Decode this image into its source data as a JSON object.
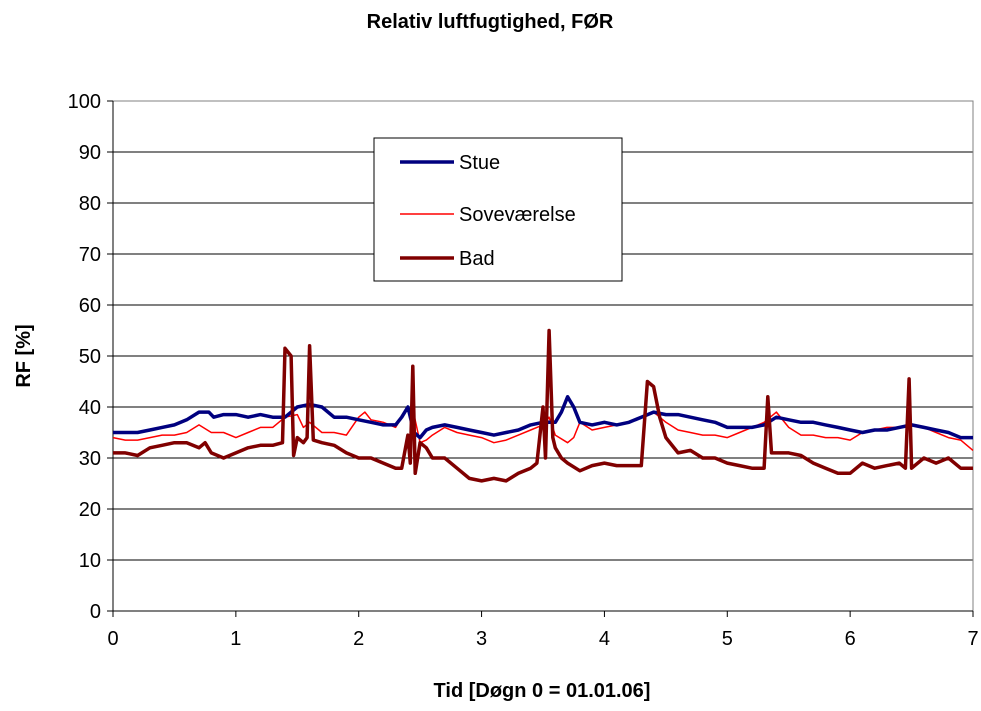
{
  "chart_data": {
    "type": "line",
    "title": "Relativ luftfugtighed, FØR",
    "xlabel": "Tid [Døgn 0 = 01.01.06]",
    "ylabel": "RF [%]",
    "xlim": [
      0,
      7
    ],
    "ylim": [
      0,
      100
    ],
    "x_ticks": [
      "0",
      "1",
      "2",
      "3",
      "4",
      "5",
      "6",
      "7"
    ],
    "y_ticks": [
      "0",
      "10",
      "20",
      "30",
      "40",
      "50",
      "60",
      "70",
      "80",
      "90",
      "100"
    ],
    "grid": "horizontal",
    "legend_position": "upper-center",
    "series": [
      {
        "name": "Stue",
        "color": "#00007f",
        "points": [
          [
            0,
            35
          ],
          [
            0.2,
            35
          ],
          [
            0.3,
            35.5
          ],
          [
            0.4,
            36
          ],
          [
            0.5,
            36.5
          ],
          [
            0.6,
            37.5
          ],
          [
            0.7,
            39
          ],
          [
            0.78,
            39
          ],
          [
            0.82,
            38
          ],
          [
            0.9,
            38.5
          ],
          [
            1.0,
            38.5
          ],
          [
            1.1,
            38
          ],
          [
            1.2,
            38.5
          ],
          [
            1.3,
            38
          ],
          [
            1.4,
            38
          ],
          [
            1.5,
            40
          ],
          [
            1.6,
            40.5
          ],
          [
            1.7,
            40
          ],
          [
            1.8,
            38
          ],
          [
            1.9,
            38
          ],
          [
            2.0,
            37.5
          ],
          [
            2.1,
            37
          ],
          [
            2.2,
            36.5
          ],
          [
            2.3,
            36.5
          ],
          [
            2.35,
            38
          ],
          [
            2.4,
            40
          ],
          [
            2.45,
            35
          ],
          [
            2.5,
            34
          ],
          [
            2.55,
            35.5
          ],
          [
            2.6,
            36
          ],
          [
            2.7,
            36.5
          ],
          [
            2.8,
            36
          ],
          [
            2.9,
            35.5
          ],
          [
            3.0,
            35
          ],
          [
            3.1,
            34.5
          ],
          [
            3.2,
            35
          ],
          [
            3.3,
            35.5
          ],
          [
            3.4,
            36.5
          ],
          [
            3.5,
            37
          ],
          [
            3.6,
            37
          ],
          [
            3.65,
            39
          ],
          [
            3.7,
            42
          ],
          [
            3.75,
            40
          ],
          [
            3.8,
            37
          ],
          [
            3.9,
            36.5
          ],
          [
            4.0,
            37
          ],
          [
            4.1,
            36.5
          ],
          [
            4.2,
            37
          ],
          [
            4.3,
            38
          ],
          [
            4.4,
            39
          ],
          [
            4.5,
            38.5
          ],
          [
            4.6,
            38.5
          ],
          [
            4.7,
            38
          ],
          [
            4.8,
            37.5
          ],
          [
            4.9,
            37
          ],
          [
            5.0,
            36
          ],
          [
            5.1,
            36
          ],
          [
            5.2,
            36
          ],
          [
            5.3,
            36.5
          ],
          [
            5.4,
            38
          ],
          [
            5.5,
            37.5
          ],
          [
            5.6,
            37
          ],
          [
            5.7,
            37
          ],
          [
            5.8,
            36.5
          ],
          [
            5.9,
            36
          ],
          [
            6.0,
            35.5
          ],
          [
            6.1,
            35
          ],
          [
            6.2,
            35.5
          ],
          [
            6.3,
            35.5
          ],
          [
            6.4,
            36
          ],
          [
            6.5,
            36.5
          ],
          [
            6.6,
            36
          ],
          [
            6.7,
            35.5
          ],
          [
            6.8,
            35
          ],
          [
            6.9,
            34
          ],
          [
            7.0,
            34
          ]
        ]
      },
      {
        "name": "Soveværelse",
        "color": "#ff0000",
        "points": [
          [
            0,
            34
          ],
          [
            0.1,
            33.5
          ],
          [
            0.2,
            33.5
          ],
          [
            0.3,
            34
          ],
          [
            0.4,
            34.5
          ],
          [
            0.5,
            34.5
          ],
          [
            0.6,
            35
          ],
          [
            0.7,
            36.5
          ],
          [
            0.8,
            35
          ],
          [
            0.9,
            35
          ],
          [
            1.0,
            34
          ],
          [
            1.1,
            35
          ],
          [
            1.2,
            36
          ],
          [
            1.3,
            36
          ],
          [
            1.4,
            38
          ],
          [
            1.5,
            38.5
          ],
          [
            1.55,
            36
          ],
          [
            1.6,
            37
          ],
          [
            1.7,
            35
          ],
          [
            1.8,
            35
          ],
          [
            1.9,
            34.5
          ],
          [
            2.0,
            38
          ],
          [
            2.05,
            39
          ],
          [
            2.1,
            37.5
          ],
          [
            2.2,
            37
          ],
          [
            2.3,
            36
          ],
          [
            2.35,
            38
          ],
          [
            2.4,
            40
          ],
          [
            2.45,
            38.5
          ],
          [
            2.5,
            33
          ],
          [
            2.55,
            33.5
          ],
          [
            2.6,
            34.5
          ],
          [
            2.7,
            36
          ],
          [
            2.8,
            35
          ],
          [
            2.9,
            34.5
          ],
          [
            3.0,
            34
          ],
          [
            3.1,
            33
          ],
          [
            3.2,
            33.5
          ],
          [
            3.3,
            34.5
          ],
          [
            3.4,
            35.5
          ],
          [
            3.45,
            36
          ],
          [
            3.5,
            36.5
          ],
          [
            3.55,
            38
          ],
          [
            3.6,
            34.5
          ],
          [
            3.7,
            33
          ],
          [
            3.75,
            34
          ],
          [
            3.8,
            37
          ],
          [
            3.9,
            35.5
          ],
          [
            4.0,
            36
          ],
          [
            4.1,
            36.5
          ],
          [
            4.2,
            37
          ],
          [
            4.3,
            38
          ],
          [
            4.4,
            39
          ],
          [
            4.5,
            37
          ],
          [
            4.6,
            35.5
          ],
          [
            4.7,
            35
          ],
          [
            4.8,
            34.5
          ],
          [
            4.9,
            34.5
          ],
          [
            5.0,
            34
          ],
          [
            5.1,
            35
          ],
          [
            5.2,
            36
          ],
          [
            5.3,
            37
          ],
          [
            5.4,
            39
          ],
          [
            5.5,
            36
          ],
          [
            5.6,
            34.5
          ],
          [
            5.7,
            34.5
          ],
          [
            5.8,
            34
          ],
          [
            5.9,
            34
          ],
          [
            6.0,
            33.5
          ],
          [
            6.1,
            35
          ],
          [
            6.2,
            35.5
          ],
          [
            6.3,
            36
          ],
          [
            6.4,
            36
          ],
          [
            6.5,
            36.5
          ],
          [
            6.6,
            36
          ],
          [
            6.7,
            35
          ],
          [
            6.8,
            34
          ],
          [
            6.9,
            33.5
          ],
          [
            7.0,
            31.5
          ]
        ]
      },
      {
        "name": "Bad",
        "color": "#800000",
        "points": [
          [
            0,
            31
          ],
          [
            0.1,
            31
          ],
          [
            0.2,
            30.5
          ],
          [
            0.3,
            32
          ],
          [
            0.4,
            32.5
          ],
          [
            0.5,
            33
          ],
          [
            0.6,
            33
          ],
          [
            0.7,
            32
          ],
          [
            0.75,
            33
          ],
          [
            0.8,
            31
          ],
          [
            0.9,
            30
          ],
          [
            1.0,
            31
          ],
          [
            1.1,
            32
          ],
          [
            1.2,
            32.5
          ],
          [
            1.3,
            32.5
          ],
          [
            1.38,
            33
          ],
          [
            1.4,
            51.5
          ],
          [
            1.45,
            50
          ],
          [
            1.47,
            30.5
          ],
          [
            1.5,
            34
          ],
          [
            1.55,
            33
          ],
          [
            1.58,
            34
          ],
          [
            1.6,
            52
          ],
          [
            1.63,
            33.5
          ],
          [
            1.7,
            33
          ],
          [
            1.8,
            32.5
          ],
          [
            1.9,
            31
          ],
          [
            2.0,
            30
          ],
          [
            2.1,
            30
          ],
          [
            2.2,
            29
          ],
          [
            2.3,
            28
          ],
          [
            2.35,
            28
          ],
          [
            2.4,
            34.5
          ],
          [
            2.42,
            29
          ],
          [
            2.44,
            48
          ],
          [
            2.46,
            27
          ],
          [
            2.5,
            33
          ],
          [
            2.55,
            32
          ],
          [
            2.6,
            30
          ],
          [
            2.7,
            30
          ],
          [
            2.8,
            28
          ],
          [
            2.9,
            26
          ],
          [
            3.0,
            25.5
          ],
          [
            3.1,
            26
          ],
          [
            3.2,
            25.5
          ],
          [
            3.3,
            27
          ],
          [
            3.4,
            28
          ],
          [
            3.45,
            29
          ],
          [
            3.5,
            40
          ],
          [
            3.52,
            30
          ],
          [
            3.55,
            55
          ],
          [
            3.58,
            34
          ],
          [
            3.6,
            32
          ],
          [
            3.65,
            30
          ],
          [
            3.7,
            29
          ],
          [
            3.8,
            27.5
          ],
          [
            3.9,
            28.5
          ],
          [
            4.0,
            29
          ],
          [
            4.1,
            28.5
          ],
          [
            4.2,
            28.5
          ],
          [
            4.3,
            28.5
          ],
          [
            4.35,
            45
          ],
          [
            4.4,
            44
          ],
          [
            4.45,
            38
          ],
          [
            4.5,
            34
          ],
          [
            4.6,
            31
          ],
          [
            4.7,
            31.5
          ],
          [
            4.8,
            30
          ],
          [
            4.9,
            30
          ],
          [
            5.0,
            29
          ],
          [
            5.1,
            28.5
          ],
          [
            5.2,
            28
          ],
          [
            5.3,
            28
          ],
          [
            5.33,
            42
          ],
          [
            5.36,
            31
          ],
          [
            5.4,
            31
          ],
          [
            5.5,
            31
          ],
          [
            5.6,
            30.5
          ],
          [
            5.7,
            29
          ],
          [
            5.8,
            28
          ],
          [
            5.9,
            27
          ],
          [
            6.0,
            27
          ],
          [
            6.1,
            29
          ],
          [
            6.2,
            28
          ],
          [
            6.3,
            28.5
          ],
          [
            6.4,
            29
          ],
          [
            6.45,
            28
          ],
          [
            6.48,
            45.5
          ],
          [
            6.5,
            28
          ],
          [
            6.6,
            30
          ],
          [
            6.7,
            29
          ],
          [
            6.8,
            30
          ],
          [
            6.9,
            28
          ],
          [
            7.0,
            28
          ]
        ]
      }
    ]
  }
}
